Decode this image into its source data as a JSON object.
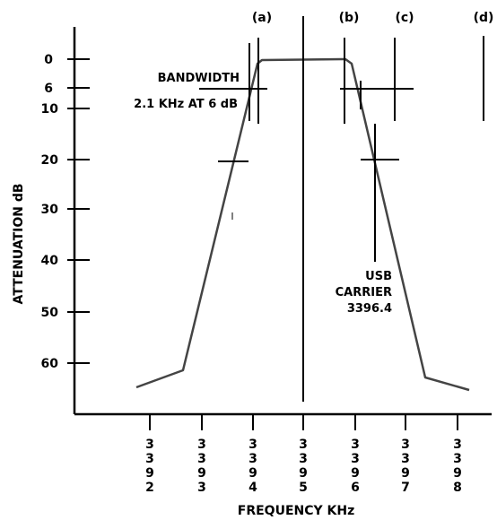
{
  "figure": {
    "x_axis_title": "FREQUENCY KHz",
    "y_axis_title": "ATTENUATION dB"
  },
  "y_ticks": [
    {
      "label": "0",
      "value": 0
    },
    {
      "label": "6",
      "value": 6
    },
    {
      "label": "10",
      "value": 10
    },
    {
      "label": "20",
      "value": 20
    },
    {
      "label": "30",
      "value": 30
    },
    {
      "label": "40",
      "value": 40
    },
    {
      "label": "50",
      "value": 50
    },
    {
      "label": "60",
      "value": 60
    }
  ],
  "x_ticks": [
    {
      "label": "3392",
      "value": 3392
    },
    {
      "label": "3393",
      "value": 3393
    },
    {
      "label": "3394",
      "value": 3394
    },
    {
      "label": "3395",
      "value": 3395
    },
    {
      "label": "3396",
      "value": 3396
    },
    {
      "label": "3397",
      "value": 3397
    },
    {
      "label": "3398",
      "value": 3398
    }
  ],
  "markers": [
    {
      "label": "(a)"
    },
    {
      "label": "(b)"
    },
    {
      "label": "(c)"
    },
    {
      "label": "(d)"
    }
  ],
  "annotations": {
    "bandwidth_title": "BANDWIDTH",
    "bandwidth_value": "2.1 KHz AT 6 dB",
    "carrier_line1": "USB",
    "carrier_line2": "CARRIER",
    "carrier_line3": "3396.4"
  }
}
